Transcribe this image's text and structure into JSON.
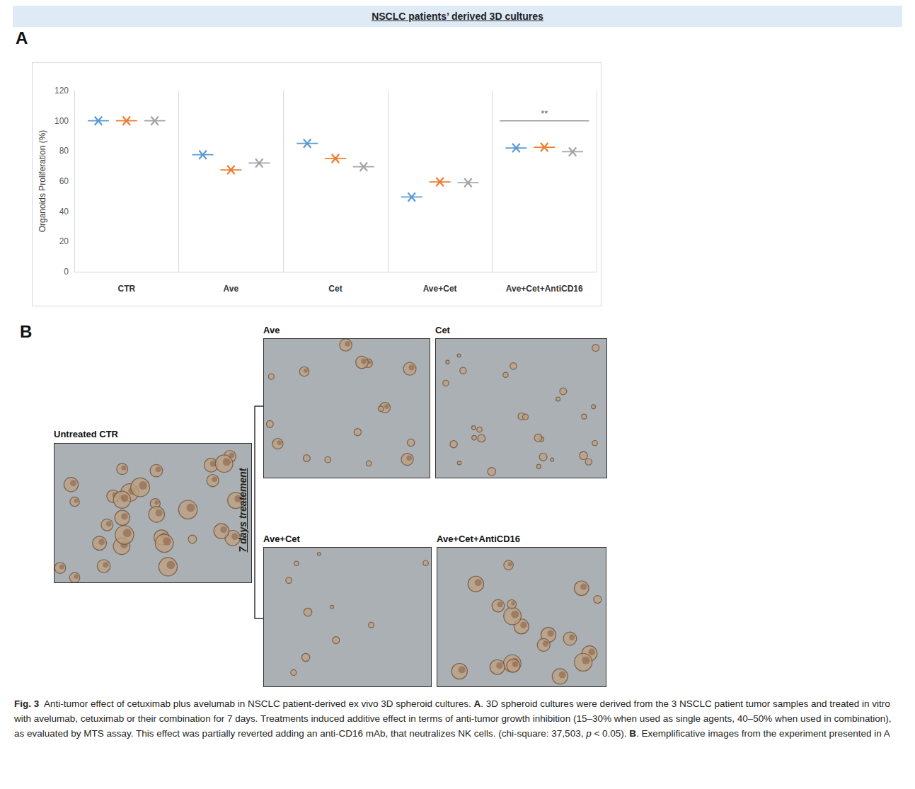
{
  "chart_data": {
    "type": "scatter",
    "title": "NSCLC patients’ derived 3D cultures",
    "ylabel": "Organoids Proliferation (%)",
    "categories": [
      "CTR",
      "Ave",
      "Cet",
      "Ave+Cet",
      "Ave+Cet+AntiCD16"
    ],
    "series": [
      {
        "color": "#5b9bd5",
        "values": [
          100,
          77.5,
          85,
          49.5,
          82
        ]
      },
      {
        "color": "#ed7d31",
        "values": [
          100,
          67.5,
          75,
          59.5,
          82.5
        ]
      },
      {
        "color": "#a5a5a5",
        "values": [
          100,
          72,
          69.5,
          59,
          79.5
        ]
      }
    ],
    "ylim": [
      0,
      120
    ],
    "yticks": [
      0,
      20,
      40,
      60,
      80,
      100,
      120
    ],
    "grid": "x",
    "marker": "x",
    "annotations": [
      {
        "text": "**",
        "category": "Ave+Cet+AntiCD16",
        "y": 100
      }
    ]
  },
  "figure": {
    "panel_a_label": "A",
    "panel_b_label": "B",
    "treatment_label": "7 days treatement",
    "images": [
      {
        "label": "Untreated CTR"
      },
      {
        "label": "Ave"
      },
      {
        "label": "Cet"
      },
      {
        "label": "Ave+Cet"
      },
      {
        "label": "Ave+Cet+AntiCD16"
      }
    ],
    "caption": [
      {
        "text": "Fig. 3",
        "bold": true
      },
      {
        "text": "  Anti-tumor effect of cetuximab plus avelumab in NSCLC patient-derived ex vivo 3D spheroid cultures. "
      },
      {
        "text": "A",
        "bold": true
      },
      {
        "text": ". 3D spheroid cultures were derived from the 3 NSCLC patient tumor samples and treated in vitro with avelumab, cetuximab or their combination for 7 days. Treatments induced additive effect in terms of anti-tumor growth inhibition (15–30% when used as single agents, 40–50% when used in combination), as evaluated by MTS assay. This effect was partially reverted adding an anti-CD16 mAb, that neutralizes NK cells. (chi-square: 37,503, "
      },
      {
        "text": "p",
        "italic": true
      },
      {
        "text": " < 0.05). "
      },
      {
        "text": "B",
        "bold": true
      },
      {
        "text": ". Exemplificative images from the experiment presented in A"
      }
    ]
  }
}
